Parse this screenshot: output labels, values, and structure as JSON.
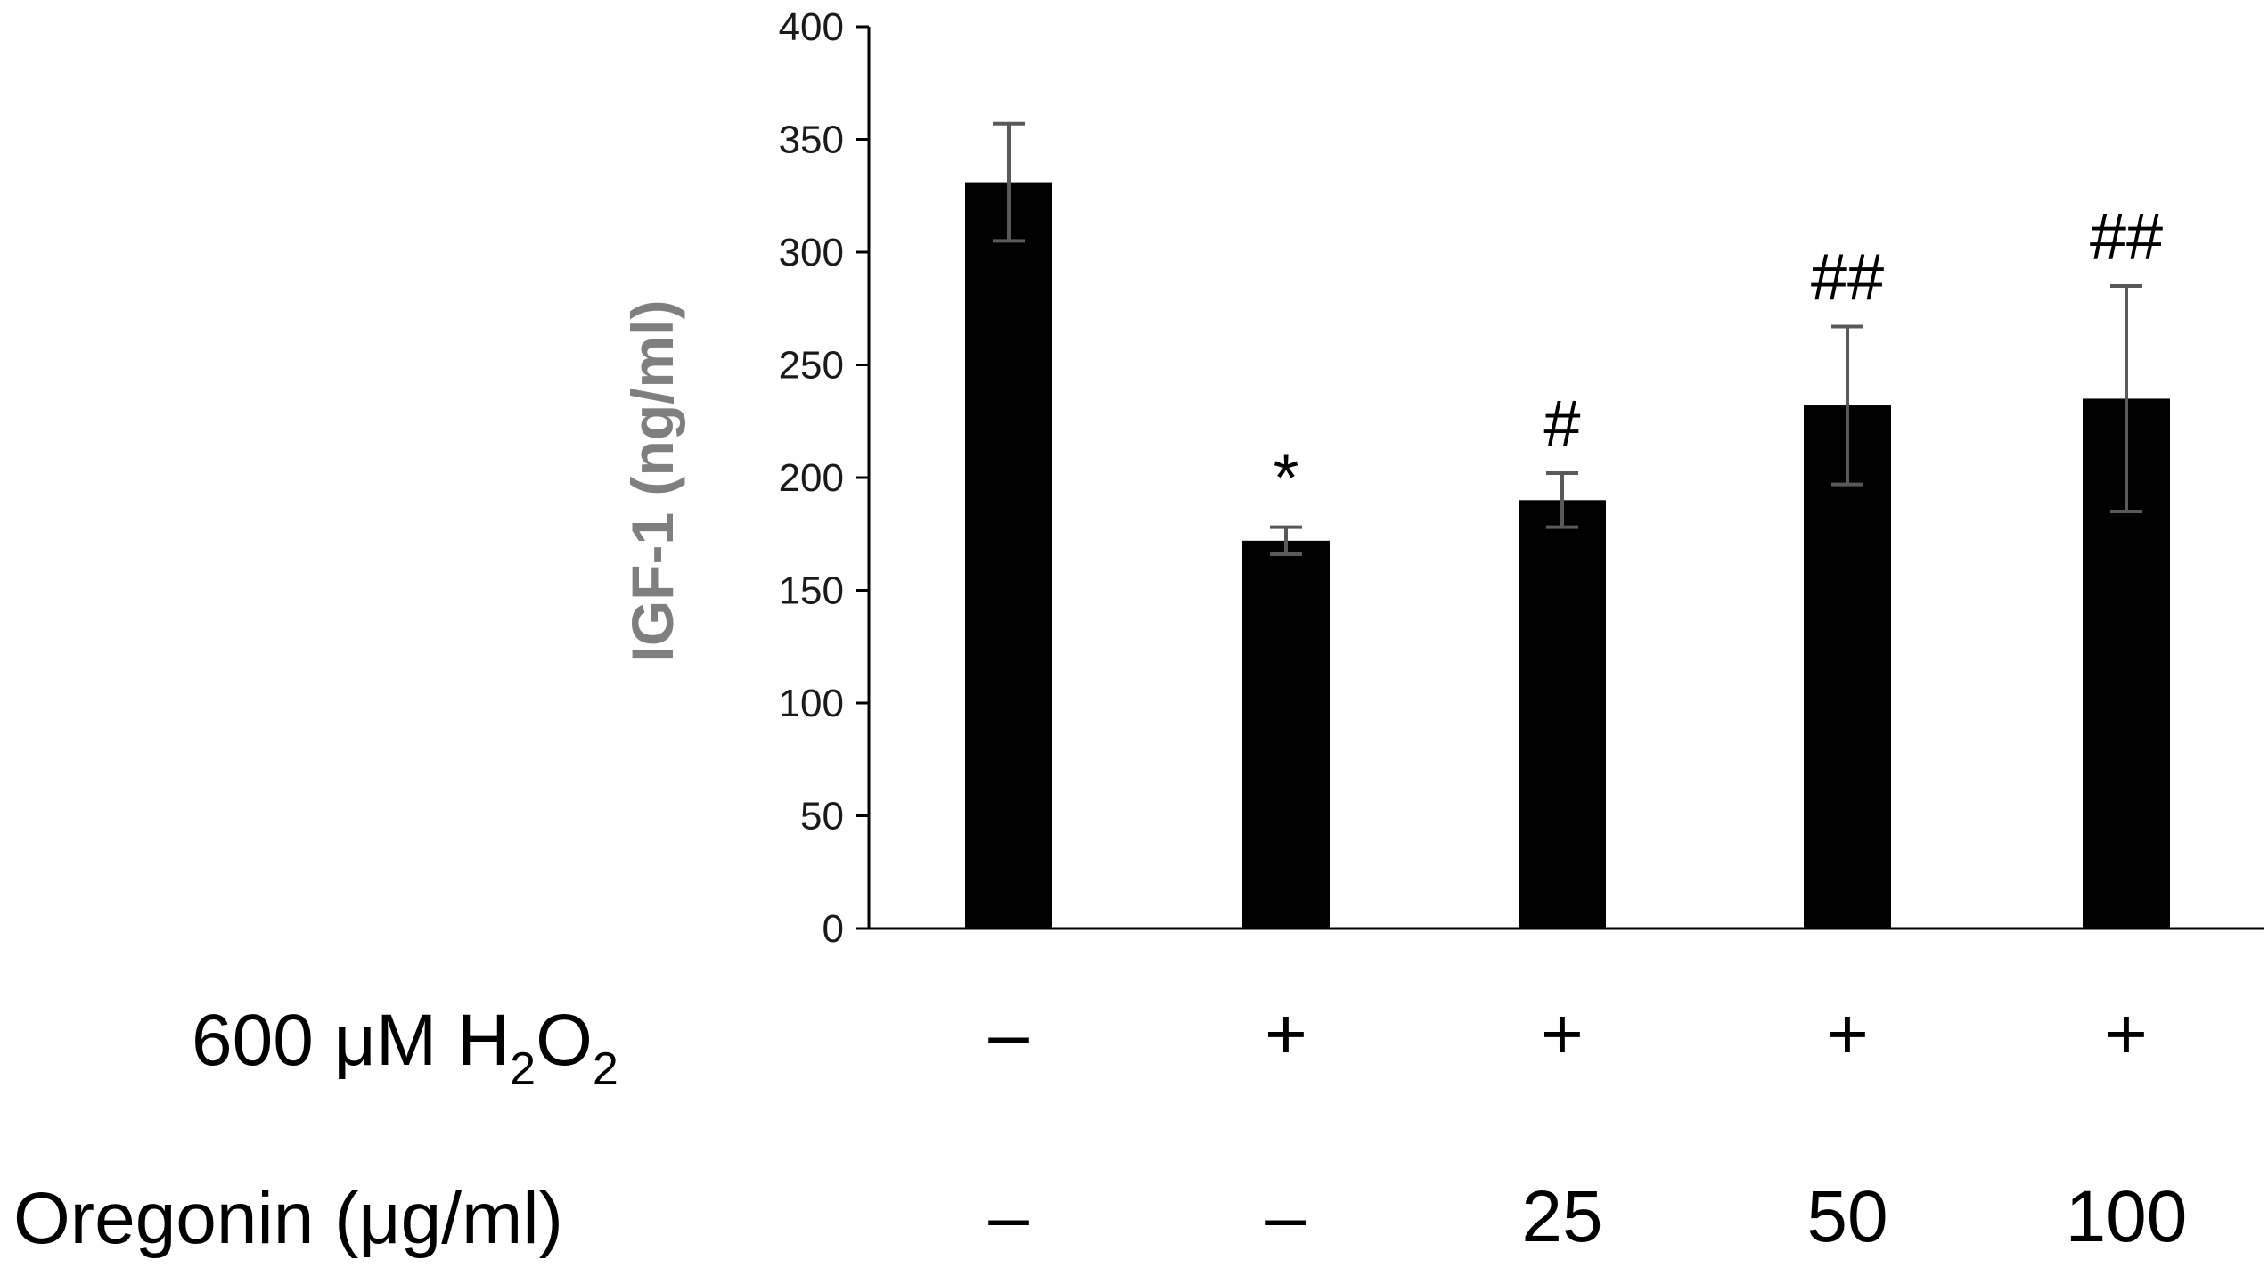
{
  "chart_data": {
    "type": "bar",
    "ylabel": "IGF-1 (ng/ml)",
    "ylim": [
      0,
      400
    ],
    "yticks": [
      0,
      50,
      100,
      150,
      200,
      250,
      300,
      350,
      400
    ],
    "grid": false,
    "bar_color": "#000000",
    "error_color": "#595959",
    "ylabel_color": "#7f7f7f",
    "values": [
      331,
      172,
      190,
      232,
      235
    ],
    "errors": [
      26,
      6,
      12,
      35,
      50
    ],
    "significance": [
      "",
      "*",
      "#",
      "##",
      "##"
    ]
  },
  "conditions": {
    "h2o2": {
      "label_main": "600 μM H",
      "label_sub1": "2",
      "label_mid": "O",
      "label_sub2": "2",
      "values": [
        "–",
        "+",
        "+",
        "+",
        "+"
      ]
    },
    "oregonin": {
      "label": "Oregonin (μg/ml)",
      "values": [
        "–",
        "–",
        "25",
        "50",
        "100"
      ]
    }
  }
}
